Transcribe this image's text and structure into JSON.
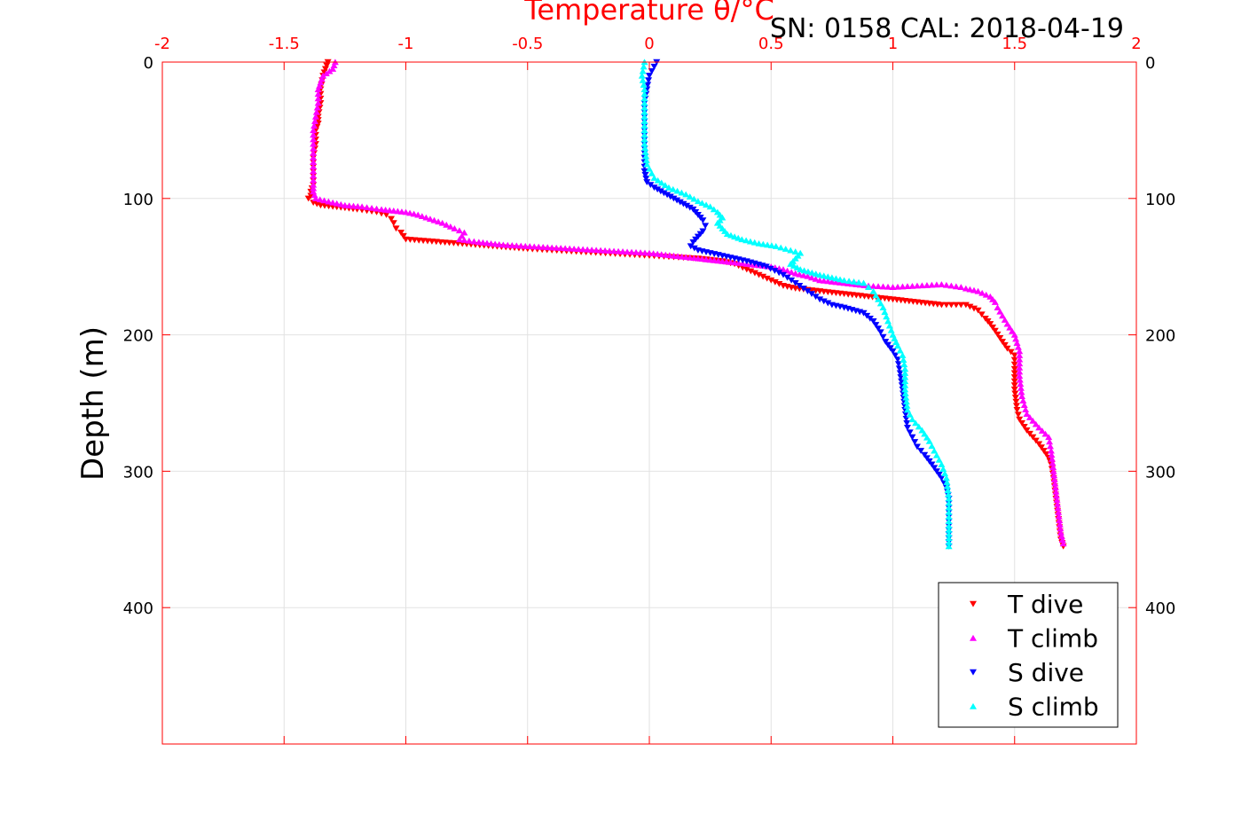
{
  "chart_data": {
    "type": "scatter",
    "title": "Temperature θ/°C",
    "annotation": "SN: 0158  CAL: 2018-04-19",
    "xlabel_top": "Temperature θ/°C",
    "ylabel": "Depth (m)",
    "xlim": [
      -2,
      2
    ],
    "ylim": [
      500,
      0
    ],
    "x_ticks": [
      -2,
      -1.5,
      -1,
      -0.5,
      0,
      0.5,
      1,
      1.5,
      2
    ],
    "x_tick_labels": [
      "-2",
      "-1.5",
      "-1",
      "-0.5",
      "0",
      "0.5",
      "1",
      "1.5",
      "2"
    ],
    "y_ticks": [
      0,
      100,
      200,
      300,
      400
    ],
    "y_tick_labels": [
      "0",
      "100",
      "200",
      "300",
      "400"
    ],
    "grid": true,
    "axis_color": "#ff0000",
    "legend_position": "bottom-right",
    "series": [
      {
        "name": "T dive",
        "color": "#ff0000",
        "marker": "triangle-down",
        "x": [
          -1.32,
          -1.33,
          -1.34,
          -1.35,
          -1.35,
          -1.36,
          -1.36,
          -1.37,
          -1.37,
          -1.38,
          -1.38,
          -1.38,
          -1.39,
          -1.39,
          -1.4,
          -1.38,
          -1.35,
          -1.3,
          -1.25,
          -1.2,
          -1.12,
          -1.08,
          -1.06,
          -1.05,
          -1.04,
          -1.02,
          -1.0,
          -0.5,
          -0.4,
          -0.3,
          -0.2,
          -0.1,
          0.0,
          0.1,
          0.2,
          0.3,
          0.35,
          0.4,
          0.45,
          0.5,
          0.55,
          0.6,
          0.7,
          0.8,
          0.9,
          1.0,
          1.1,
          1.2,
          1.3,
          1.35,
          1.38,
          1.4,
          1.42,
          1.45,
          1.47,
          1.5,
          1.5,
          1.5,
          1.51,
          1.52,
          1.55,
          1.6,
          1.64,
          1.65,
          1.66,
          1.67,
          1.68,
          1.69,
          1.7
        ],
        "y": [
          0,
          5,
          10,
          20,
          30,
          40,
          45,
          50,
          60,
          70,
          80,
          90,
          95,
          98,
          100,
          103,
          105,
          106,
          107,
          108,
          110,
          112,
          115,
          118,
          122,
          125,
          130,
          137,
          138,
          139,
          140,
          141,
          142,
          143,
          144,
          146,
          148,
          152,
          156,
          160,
          164,
          166,
          168,
          170,
          172,
          174,
          176,
          178,
          178,
          182,
          188,
          192,
          197,
          205,
          210,
          215,
          225,
          240,
          255,
          262,
          270,
          280,
          290,
          295,
          305,
          320,
          335,
          350,
          355
        ]
      },
      {
        "name": "T climb",
        "color": "#ff00ff",
        "marker": "triangle-up",
        "x": [
          -1.29,
          -1.3,
          -1.34,
          -1.35,
          -1.36,
          -1.36,
          -1.37,
          -1.38,
          -1.38,
          -1.38,
          -1.38,
          -1.38,
          -1.38,
          -1.37,
          -1.3,
          -1.25,
          -1.18,
          -1.1,
          -1.0,
          -0.95,
          -0.9,
          -0.85,
          -0.8,
          -0.76,
          -0.78,
          -0.7,
          -0.6,
          -0.4,
          -0.2,
          0.0,
          0.1,
          0.2,
          0.3,
          0.4,
          0.5,
          0.55,
          0.6,
          0.65,
          0.7,
          0.8,
          0.9,
          1.0,
          1.1,
          1.2,
          1.28,
          1.3,
          1.35,
          1.4,
          1.42,
          1.43,
          1.45,
          1.47,
          1.5,
          1.52,
          1.52,
          1.53,
          1.55,
          1.6,
          1.64,
          1.65,
          1.66,
          1.67,
          1.68,
          1.69,
          1.7
        ],
        "y": [
          0,
          5,
          10,
          15,
          20,
          30,
          40,
          50,
          60,
          70,
          80,
          90,
          95,
          100,
          103,
          105,
          106,
          108,
          110,
          112,
          115,
          118,
          122,
          125,
          130,
          132,
          134,
          136,
          138,
          140,
          142,
          144,
          146,
          148,
          150,
          152,
          155,
          157,
          160,
          162,
          164,
          165,
          164,
          163,
          165,
          166,
          168,
          172,
          176,
          180,
          186,
          192,
          200,
          212,
          230,
          245,
          258,
          268,
          275,
          285,
          300,
          315,
          330,
          345,
          353
        ]
      },
      {
        "name": "S dive",
        "color": "#0000ff",
        "marker": "triangle-down",
        "x": [
          0.03,
          0.0,
          -0.01,
          -0.02,
          -0.02,
          -0.02,
          -0.02,
          -0.02,
          -0.02,
          -0.01,
          0.02,
          0.06,
          0.1,
          0.14,
          0.18,
          0.2,
          0.22,
          0.23,
          0.22,
          0.2,
          0.18,
          0.17,
          0.2,
          0.3,
          0.4,
          0.48,
          0.55,
          0.6,
          0.65,
          0.7,
          0.75,
          0.8,
          0.88,
          0.92,
          0.95,
          0.97,
          1.0,
          1.02,
          1.03,
          1.04,
          1.05,
          1.06,
          1.08,
          1.1,
          1.13,
          1.16,
          1.18,
          1.2,
          1.22,
          1.23,
          1.23,
          1.23
        ],
        "y": [
          0,
          10,
          20,
          30,
          40,
          50,
          60,
          70,
          80,
          88,
          92,
          96,
          100,
          104,
          108,
          112,
          116,
          120,
          124,
          128,
          132,
          135,
          138,
          142,
          146,
          150,
          156,
          162,
          168,
          174,
          178,
          180,
          184,
          190,
          198,
          205,
          212,
          218,
          228,
          240,
          255,
          268,
          275,
          282,
          288,
          295,
          300,
          305,
          312,
          320,
          340,
          355
        ]
      },
      {
        "name": "S climb",
        "color": "#00ffff",
        "marker": "triangle-up",
        "x": [
          -0.02,
          -0.03,
          -0.02,
          -0.02,
          -0.02,
          -0.02,
          -0.02,
          -0.01,
          0.02,
          0.08,
          0.15,
          0.2,
          0.25,
          0.28,
          0.3,
          0.28,
          0.3,
          0.32,
          0.38,
          0.45,
          0.52,
          0.58,
          0.62,
          0.6,
          0.58,
          0.62,
          0.7,
          0.8,
          0.88,
          0.9,
          0.92,
          0.94,
          0.96,
          0.98,
          1.0,
          1.02,
          1.04,
          1.05,
          1.05,
          1.06,
          1.08,
          1.12,
          1.15,
          1.17,
          1.2,
          1.22,
          1.23,
          1.23,
          1.23
        ],
        "y": [
          0,
          10,
          20,
          30,
          40,
          50,
          60,
          75,
          85,
          92,
          97,
          102,
          106,
          110,
          114,
          118,
          122,
          126,
          130,
          133,
          135,
          138,
          140,
          144,
          148,
          152,
          156,
          160,
          162,
          165,
          168,
          174,
          180,
          190,
          200,
          208,
          215,
          225,
          240,
          255,
          262,
          270,
          278,
          285,
          295,
          305,
          320,
          340,
          355
        ]
      }
    ]
  }
}
